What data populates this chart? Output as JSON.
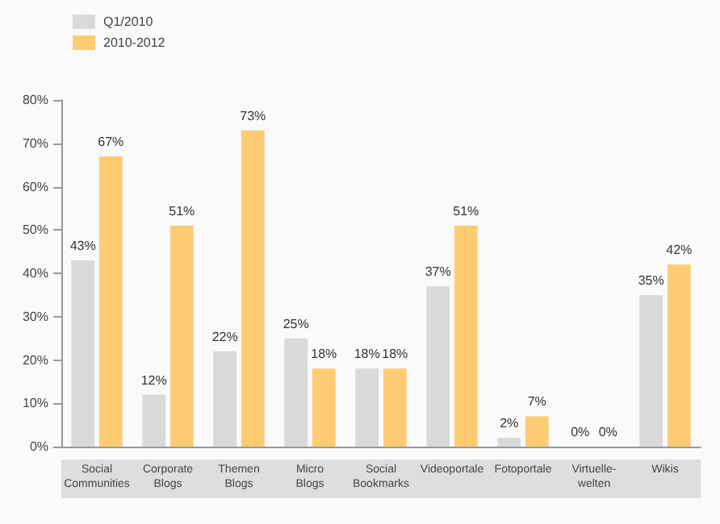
{
  "chart_data": {
    "type": "bar",
    "categories": [
      "Social Communities",
      "Corporate Blogs",
      "Themen Blogs",
      "Micro Blogs",
      "Social Bookmarks",
      "Videoportale",
      "Fotoportale",
      "Virtuelle-welten",
      "Wikis"
    ],
    "series": [
      {
        "name": "Q1/2010",
        "color": "#d9d9d9",
        "values": [
          43,
          12,
          22,
          25,
          18,
          37,
          2,
          0,
          35
        ]
      },
      {
        "name": "2010-2012",
        "color": "#ffcc73",
        "values": [
          67,
          51,
          73,
          18,
          18,
          51,
          7,
          0,
          42
        ]
      }
    ],
    "ylim": [
      0,
      80
    ],
    "yticks": [
      {
        "value": 0,
        "label": "0%"
      },
      {
        "value": 10,
        "label": "10%"
      },
      {
        "value": 20,
        "label": "20%"
      },
      {
        "value": 30,
        "label": "30%"
      },
      {
        "value": 40,
        "label": "40%"
      },
      {
        "value": 50,
        "label": "50%"
      },
      {
        "value": 60,
        "label": "60%"
      },
      {
        "value": 70,
        "label": "70%"
      },
      {
        "value": 80,
        "label": "80%"
      }
    ],
    "value_labels": [
      [
        "43%",
        "12%",
        "22%",
        "25%",
        "18%",
        "37%",
        "2%",
        "0%",
        "35%"
      ],
      [
        "67%",
        "51%",
        "73%",
        "18%",
        "18%",
        "51%",
        "7%",
        "0%",
        "42%"
      ]
    ],
    "legend": "top left",
    "grid": false
  }
}
